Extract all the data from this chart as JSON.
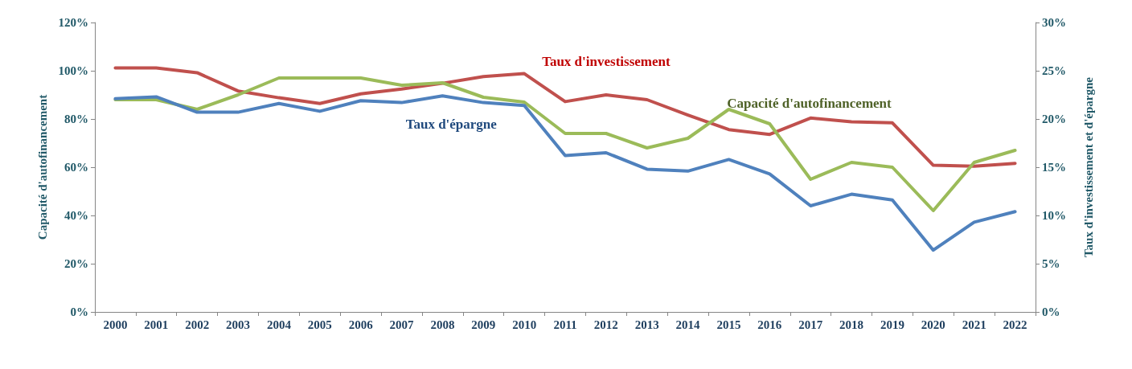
{
  "chart_data": {
    "type": "line",
    "ylabel": "Capacité d'autofinancement",
    "y2label": "Taux d'investissement et d'épargne",
    "categories": [
      "2000",
      "2001",
      "2002",
      "2003",
      "2004",
      "2005",
      "2006",
      "2007",
      "2008",
      "2009",
      "2010",
      "2011",
      "2012",
      "2013",
      "2014",
      "2015",
      "2016",
      "2017",
      "2018",
      "2019",
      "2020",
      "2021",
      "2022"
    ],
    "ylim": [
      0,
      120
    ],
    "yticks": [
      {
        "value": 0,
        "label": "0%"
      },
      {
        "value": 20,
        "label": "20%"
      },
      {
        "value": 40,
        "label": "40%"
      },
      {
        "value": 60,
        "label": "60%"
      },
      {
        "value": 80,
        "label": "80%"
      },
      {
        "value": 100,
        "label": "100%"
      },
      {
        "value": 120,
        "label": "120%"
      }
    ],
    "y2lim": [
      0,
      30
    ],
    "y2ticks": [
      {
        "value": 0,
        "label": "0%"
      },
      {
        "value": 5,
        "label": "5%"
      },
      {
        "value": 10,
        "label": "10%"
      },
      {
        "value": 15,
        "label": "15%"
      },
      {
        "value": 20,
        "label": "20%"
      },
      {
        "value": 25,
        "label": "25%"
      },
      {
        "value": 30,
        "label": "30%"
      }
    ],
    "grid": false,
    "marker": "none",
    "line_style": "solid",
    "legend": false,
    "series": [
      {
        "name": "Taux d'investissement",
        "color": "#c0504d",
        "axis": "y2",
        "values": [
          25.3,
          25.3,
          24.8,
          22.9,
          22.2,
          21.6,
          22.6,
          23.1,
          23.7,
          24.4,
          24.7,
          21.8,
          22.5,
          22.0,
          20.4,
          18.9,
          18.4,
          20.1,
          19.7,
          19.6,
          15.2,
          15.1,
          15.4
        ]
      },
      {
        "name": "Capacité d'autofinancement",
        "color": "#9bbb59",
        "values": [
          88,
          88,
          84,
          90,
          97,
          97,
          97,
          94,
          95,
          89,
          87,
          74,
          74,
          68,
          72,
          84,
          78,
          55,
          62,
          60,
          42,
          62,
          67
        ]
      },
      {
        "name": "Taux d'épargne",
        "color": "#4f81bd",
        "axis": "y2",
        "values": [
          22.1,
          22.3,
          20.7,
          20.7,
          21.6,
          20.8,
          21.9,
          21.7,
          22.4,
          21.7,
          21.4,
          16.2,
          16.5,
          14.8,
          14.6,
          15.8,
          14.3,
          11.0,
          12.2,
          11.6,
          6.4,
          9.3,
          10.4
        ]
      }
    ]
  }
}
